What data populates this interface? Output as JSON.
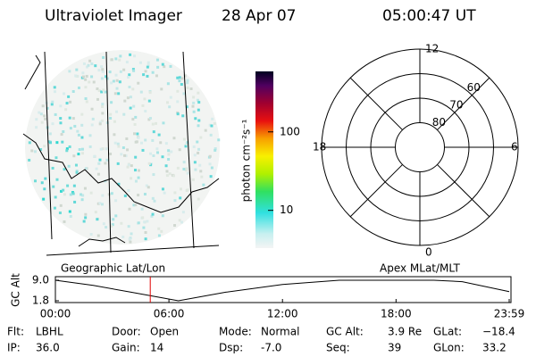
{
  "header": {
    "title": "Ultraviolet Imager",
    "date": "28 Apr 07",
    "time": "05:00:47 UT"
  },
  "image": {
    "label": "Geographic Lat/Lon"
  },
  "colorbar": {
    "label": "photon cm⁻²s⁻¹",
    "scale": "log",
    "lim": [
      3.3,
      590
    ],
    "ticks": [
      10,
      100
    ]
  },
  "polar": {
    "label": "Apex MLat/MLT",
    "lat_lim": [
      90,
      50
    ],
    "rings": [
      80,
      70,
      60
    ],
    "hours": [
      12,
      18,
      0,
      6
    ]
  },
  "altitude": {
    "ylabel": "GC Alt",
    "ylim": [
      1.8,
      9.0
    ],
    "yticks": [
      {
        "value": 9.0,
        "label": "9.0"
      },
      1.8
    ],
    "xlim": [
      0,
      23.98
    ],
    "xticks": [
      {
        "value": 0,
        "label": "00:00"
      },
      {
        "value": 6,
        "label": "06:00"
      },
      {
        "value": 12,
        "label": "12:00"
      },
      {
        "value": 18,
        "label": "18:00"
      },
      {
        "value": 23.98,
        "label": "23:59"
      }
    ],
    "x": [
      0,
      2,
      4,
      6.5,
      9,
      12,
      15,
      20,
      21.5,
      23.98
    ],
    "values": [
      9.0,
      7.2,
      4.8,
      1.8,
      4.8,
      7.5,
      9.0,
      9.0,
      8.5,
      5.0
    ],
    "color": "#000000",
    "current": 5.013,
    "current_color": "#e00000"
  },
  "footer": {
    "rows": [
      [
        {
          "label": "Flt:",
          "value": "LBHL"
        },
        {
          "label": "Door:",
          "value": "Open"
        },
        {
          "label": "Mode:",
          "value": "Normal"
        },
        {
          "label": "GC Alt:",
          "value": "3.9 Re"
        },
        {
          "label": "GLat:",
          "value": "−18.4"
        }
      ],
      [
        {
          "label": "IP:",
          "value": "36.0"
        },
        {
          "label": "Gain:",
          "value": "14"
        },
        {
          "label": "Dsp:",
          "value": "-7.0"
        },
        {
          "label": "Seq:",
          "value": "39"
        },
        {
          "label": "GLon:",
          "value": "33.2"
        }
      ]
    ]
  }
}
